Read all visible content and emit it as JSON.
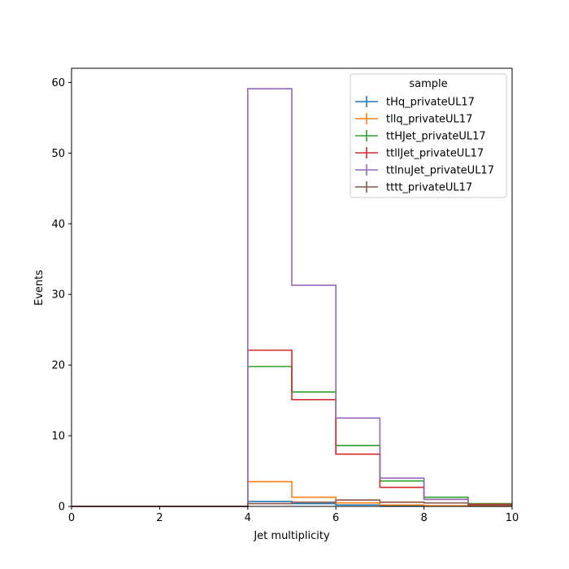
{
  "chart_data": {
    "type": "step",
    "xlabel": "Jet multiplicity",
    "ylabel": "Events",
    "xlim": [
      0,
      10
    ],
    "ylim": [
      0,
      62
    ],
    "xticks": [
      "0",
      "2",
      "4",
      "6",
      "8",
      "10"
    ],
    "yticks": [
      "0",
      "10",
      "20",
      "30",
      "40",
      "50",
      "60"
    ],
    "bin_edges": [
      0,
      1,
      2,
      3,
      4,
      5,
      6,
      7,
      8,
      9,
      10
    ],
    "legend": {
      "title": "sample",
      "placement": "upper-right"
    },
    "series": [
      {
        "name": "tHq_privateUL17",
        "color": "#1f77b4",
        "values": [
          0,
          0,
          0,
          0,
          0.7,
          0.4,
          0.2,
          0.1,
          0.05,
          0.02
        ]
      },
      {
        "name": "tllq_privateUL17",
        "color": "#ff7f0e",
        "values": [
          0,
          0,
          0,
          0,
          3.5,
          1.3,
          0.5,
          0.2,
          0.1,
          0.05
        ]
      },
      {
        "name": "ttHJet_privateUL17",
        "color": "#2ca02c",
        "values": [
          0,
          0,
          0,
          0,
          19.8,
          16.2,
          8.6,
          3.6,
          1.3,
          0.4
        ]
      },
      {
        "name": "ttllJet_privateUL17",
        "color": "#d62728",
        "values": [
          0,
          0,
          0,
          0,
          22.1,
          15.1,
          7.4,
          2.7,
          1.0,
          0.3
        ]
      },
      {
        "name": "ttlnuJet_privateUL17",
        "color": "#9467bd",
        "values": [
          0,
          0,
          0,
          0,
          59.1,
          31.3,
          12.5,
          4.0,
          1.0,
          0.2
        ]
      },
      {
        "name": "tttt_privateUL17",
        "color": "#8c564b",
        "values": [
          0,
          0,
          0,
          0,
          0.4,
          0.6,
          0.9,
          0.6,
          0.5,
          0.2
        ]
      }
    ]
  }
}
